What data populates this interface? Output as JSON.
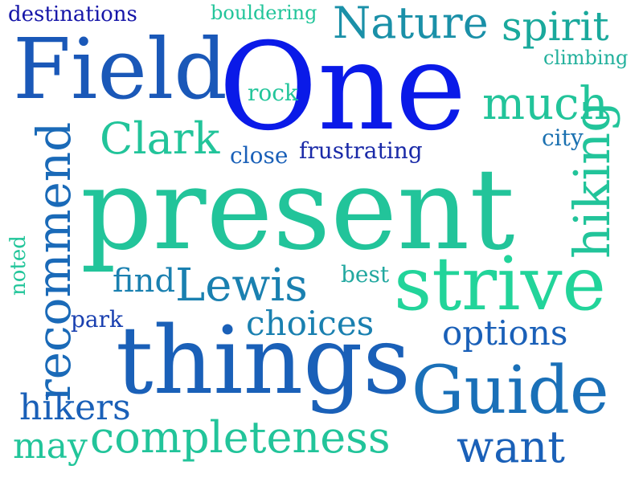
{
  "words": [
    {
      "text": "destinations",
      "color": "#1515a8"
    },
    {
      "text": "bouldering",
      "color": "#22c59a"
    },
    {
      "text": "Nature",
      "color": "#1a90a8"
    },
    {
      "text": "spirit",
      "color": "#1aa99c"
    },
    {
      "text": "Field",
      "color": "#1a58b8"
    },
    {
      "text": "One",
      "color": "#0a1ae8"
    },
    {
      "text": "climbing",
      "color": "#22b09c"
    },
    {
      "text": "rock",
      "color": "#22c59a"
    },
    {
      "text": "much",
      "color": "#22c49a"
    },
    {
      "text": "Clark",
      "color": "#22c49a"
    },
    {
      "text": "city",
      "color": "#1a70b0"
    },
    {
      "text": "close",
      "color": "#1a60b8"
    },
    {
      "text": "frustrating",
      "color": "#1a2aa8"
    },
    {
      "text": "recommend",
      "color": "#1a6ab8"
    },
    {
      "text": "present",
      "color": "#22c49a"
    },
    {
      "text": "hiking",
      "color": "#22c49a"
    },
    {
      "text": "noted",
      "color": "#22c59a"
    },
    {
      "text": "find",
      "color": "#1a80b0"
    },
    {
      "text": "Lewis",
      "color": "#1a80b0"
    },
    {
      "text": "best",
      "color": "#22a8a0"
    },
    {
      "text": "strive",
      "color": "#22d49a"
    },
    {
      "text": "park",
      "color": "#1a40b0"
    },
    {
      "text": "choices",
      "color": "#1a80b0"
    },
    {
      "text": "options",
      "color": "#1a60b8"
    },
    {
      "text": "things",
      "color": "#1a60b8"
    },
    {
      "text": "Guide",
      "color": "#1a70b8"
    },
    {
      "text": "hikers",
      "color": "#1a60b8"
    },
    {
      "text": "may",
      "color": "#22c59a"
    },
    {
      "text": "completeness",
      "color": "#22c49a"
    },
    {
      "text": "want",
      "color": "#1a60b8"
    }
  ]
}
